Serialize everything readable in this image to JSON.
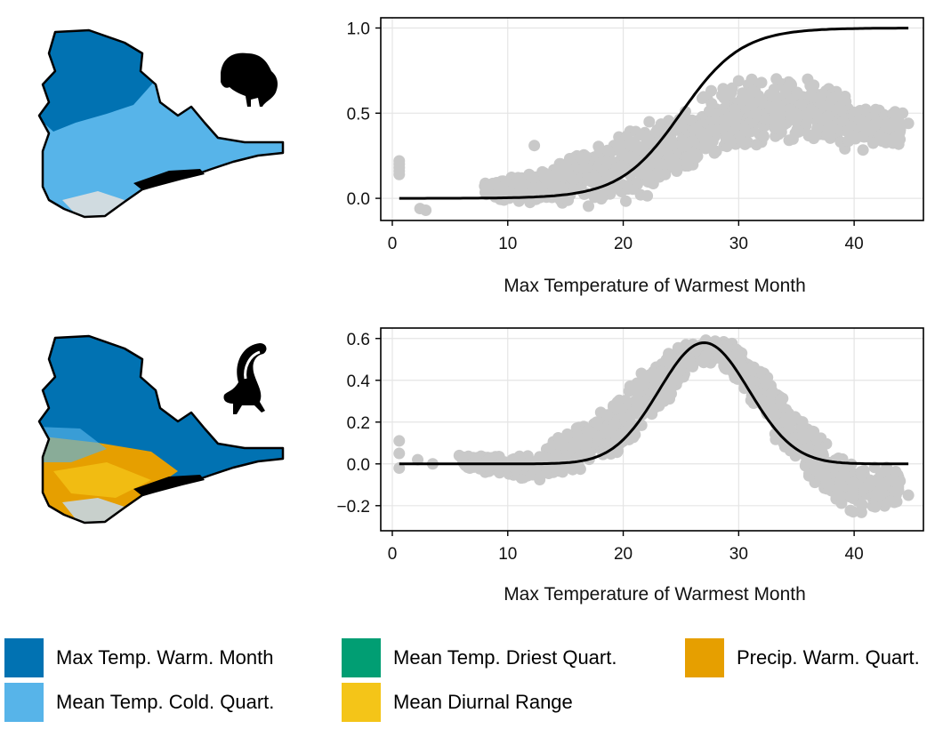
{
  "colors": {
    "max_temp_warm_month": "#0172B2",
    "mean_temp_cold_quart": "#57B4E9",
    "mean_temp_driest_quart": "#019E73",
    "mean_diurnal_range": "#F4C518",
    "precip_warm_quart": "#E69F00",
    "scatter": "#C9C9C9",
    "curve": "#000000",
    "grid": "#E5E5E5"
  },
  "species": [
    "bison-silhouette",
    "skunk-silhouette"
  ],
  "chart_data": [
    {
      "type": "scatter",
      "title": "",
      "xlabel": "Max Temperature of Warmest Month",
      "ylabel": "",
      "xlim": [
        -1,
        46
      ],
      "ylim": [
        -0.13,
        1.06
      ],
      "xticks": [
        0,
        10,
        20,
        30,
        40
      ],
      "yticks": [
        0.0,
        0.5,
        1.0
      ],
      "ytick_labels": [
        "0.0",
        "0.5",
        "1.0"
      ],
      "grid": true,
      "curve": {
        "type": "logistic",
        "x0": 25,
        "k": 0.38,
        "max": 1.0,
        "x_range": [
          0.6,
          44.7
        ]
      },
      "scatter_envelope": {
        "x": [
          8,
          10,
          12,
          14,
          16,
          18,
          20,
          22,
          24,
          26,
          28,
          30,
          32,
          34,
          36,
          38,
          40,
          42,
          44
        ],
        "y_low": [
          0.0,
          -0.02,
          -0.03,
          -0.04,
          -0.05,
          -0.05,
          -0.03,
          0.0,
          0.08,
          0.15,
          0.22,
          0.27,
          0.3,
          0.3,
          0.3,
          0.28,
          0.27,
          0.28,
          0.3
        ],
        "y_high": [
          0.1,
          0.12,
          0.15,
          0.22,
          0.3,
          0.35,
          0.4,
          0.45,
          0.5,
          0.6,
          0.68,
          0.72,
          0.74,
          0.76,
          0.72,
          0.68,
          0.6,
          0.55,
          0.5
        ]
      },
      "outliers": [
        {
          "x": 0.6,
          "y": 0.22
        },
        {
          "x": 0.6,
          "y": 0.2
        },
        {
          "x": 0.6,
          "y": 0.18
        },
        {
          "x": 0.6,
          "y": 0.16
        },
        {
          "x": 0.6,
          "y": 0.14
        },
        {
          "x": 2.4,
          "y": -0.06
        },
        {
          "x": 2.9,
          "y": -0.07
        },
        {
          "x": 12.3,
          "y": 0.31
        },
        {
          "x": 44.7,
          "y": 0.44
        },
        {
          "x": 44.2,
          "y": 0.5
        }
      ]
    },
    {
      "type": "scatter",
      "title": "",
      "xlabel": "Max Temperature of Warmest Month",
      "ylabel": "",
      "xlim": [
        -1,
        46
      ],
      "ylim": [
        -0.32,
        0.65
      ],
      "xticks": [
        0,
        10,
        20,
        30,
        40
      ],
      "yticks": [
        -0.2,
        0.0,
        0.2,
        0.4,
        0.6
      ],
      "ytick_labels": [
        "−0.2",
        "0.0",
        "0.2",
        "0.4",
        "0.6"
      ],
      "grid": true,
      "curve": {
        "type": "gaussian",
        "mu": 27,
        "sigma": 3.9,
        "max": 0.58,
        "x_range": [
          0.6,
          44.7
        ]
      },
      "scatter_envelope": {
        "x": [
          6,
          8,
          10,
          12,
          14,
          16,
          18,
          20,
          22,
          24,
          26,
          28,
          30,
          32,
          34,
          36,
          38,
          40,
          42,
          44
        ],
        "y_low": [
          -0.02,
          -0.04,
          -0.06,
          -0.09,
          -0.08,
          -0.04,
          0.0,
          0.05,
          0.15,
          0.3,
          0.45,
          0.48,
          0.38,
          0.2,
          0.05,
          -0.08,
          -0.18,
          -0.24,
          -0.22,
          -0.18
        ],
        "y_high": [
          0.04,
          0.04,
          0.04,
          0.05,
          0.12,
          0.2,
          0.28,
          0.38,
          0.48,
          0.55,
          0.6,
          0.61,
          0.58,
          0.48,
          0.32,
          0.2,
          0.1,
          0.02,
          0.0,
          -0.02
        ]
      },
      "outliers": [
        {
          "x": 0.6,
          "y": 0.11
        },
        {
          "x": 0.6,
          "y": 0.05
        },
        {
          "x": 0.6,
          "y": -0.02
        },
        {
          "x": 2.2,
          "y": 0.02
        },
        {
          "x": 3.5,
          "y": 0.0
        },
        {
          "x": 5.8,
          "y": 0.04
        },
        {
          "x": 44.7,
          "y": -0.15
        }
      ]
    }
  ],
  "legend": [
    {
      "label": "Max Temp. Warm. Month",
      "color_key": "max_temp_warm_month"
    },
    {
      "label": "Mean Temp. Cold. Quart.",
      "color_key": "mean_temp_cold_quart"
    },
    {
      "label": "Mean Temp. Driest Quart.",
      "color_key": "mean_temp_driest_quart"
    },
    {
      "label": "Mean Diurnal Range",
      "color_key": "mean_diurnal_range"
    },
    {
      "label": "Precip. Warm. Quart.",
      "color_key": "precip_warm_quart"
    }
  ]
}
